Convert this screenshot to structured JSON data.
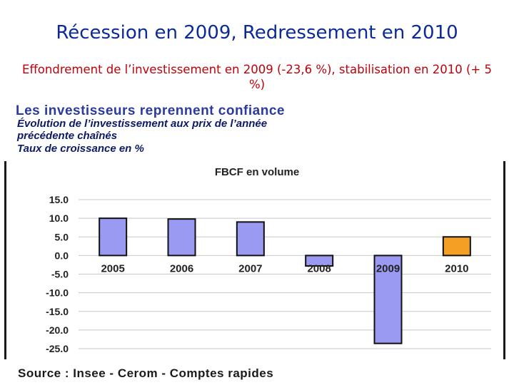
{
  "slide": {
    "title": "Récession en 2009, Redressement en 2010",
    "subtitle": "Effondrement de l’investissement en 2009 (-23,6 %), stabilisation en 2010 (+ 5 %)"
  },
  "figure": {
    "title": "Les investisseurs reprennent confiance",
    "subtitle_line1": "Évolution de l’investissement aux prix de l’année",
    "subtitle_line2": "précédente chaînés",
    "subtitle_line3": "Taux de croissance en %",
    "source": "Source : Insee - Cerom - Comptes rapides"
  },
  "chart_data": {
    "type": "bar",
    "title": "FBCF en volume",
    "categories": [
      "2005",
      "2006",
      "2007",
      "2008",
      "2009",
      "2010"
    ],
    "values": [
      10.0,
      9.8,
      9.0,
      -2.8,
      -23.6,
      5.0
    ],
    "ylim": [
      -25,
      15
    ],
    "yticks": [
      15,
      10,
      5,
      0,
      -5,
      -10,
      -15,
      -20,
      -25
    ],
    "ytick_labels": [
      "15.0",
      "10.0",
      "5.0",
      "0.0",
      "-5.0",
      "-10.0",
      "-15.0",
      "-20.0",
      "-25.0"
    ],
    "grid": true,
    "bar_colors": [
      "#9a9af2",
      "#9a9af2",
      "#9a9af2",
      "#9a9af2",
      "#9a9af2",
      "#f5a024"
    ]
  }
}
